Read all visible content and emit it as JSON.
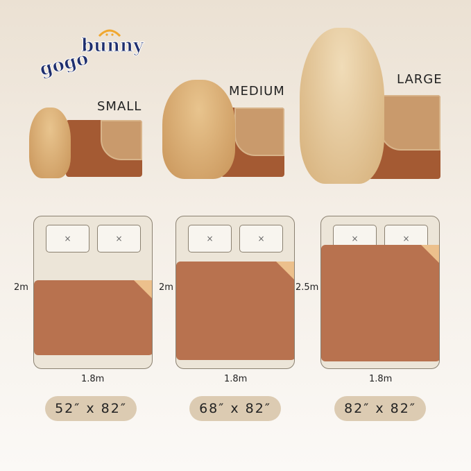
{
  "brand": {
    "logo_text": "gogobunny"
  },
  "sizes": [
    {
      "label": "SMALL",
      "height": "2m",
      "width": "1.8m",
      "dimensions": "52″ x 82″"
    },
    {
      "label": "MEDIUM",
      "height": "2m",
      "width": "1.8m",
      "dimensions": "68″ x 82″"
    },
    {
      "label": "LARGE",
      "height": "2.5m",
      "width": "1.8m",
      "dimensions": "82″ x 82″"
    }
  ],
  "colors": {
    "pad": "#b8724f",
    "pad_fold": "#ecc08c",
    "bed": "#ece5d8",
    "pill": "#dccbb2",
    "logo": "#1f2f6e",
    "logo_accent": "#f0a830"
  }
}
